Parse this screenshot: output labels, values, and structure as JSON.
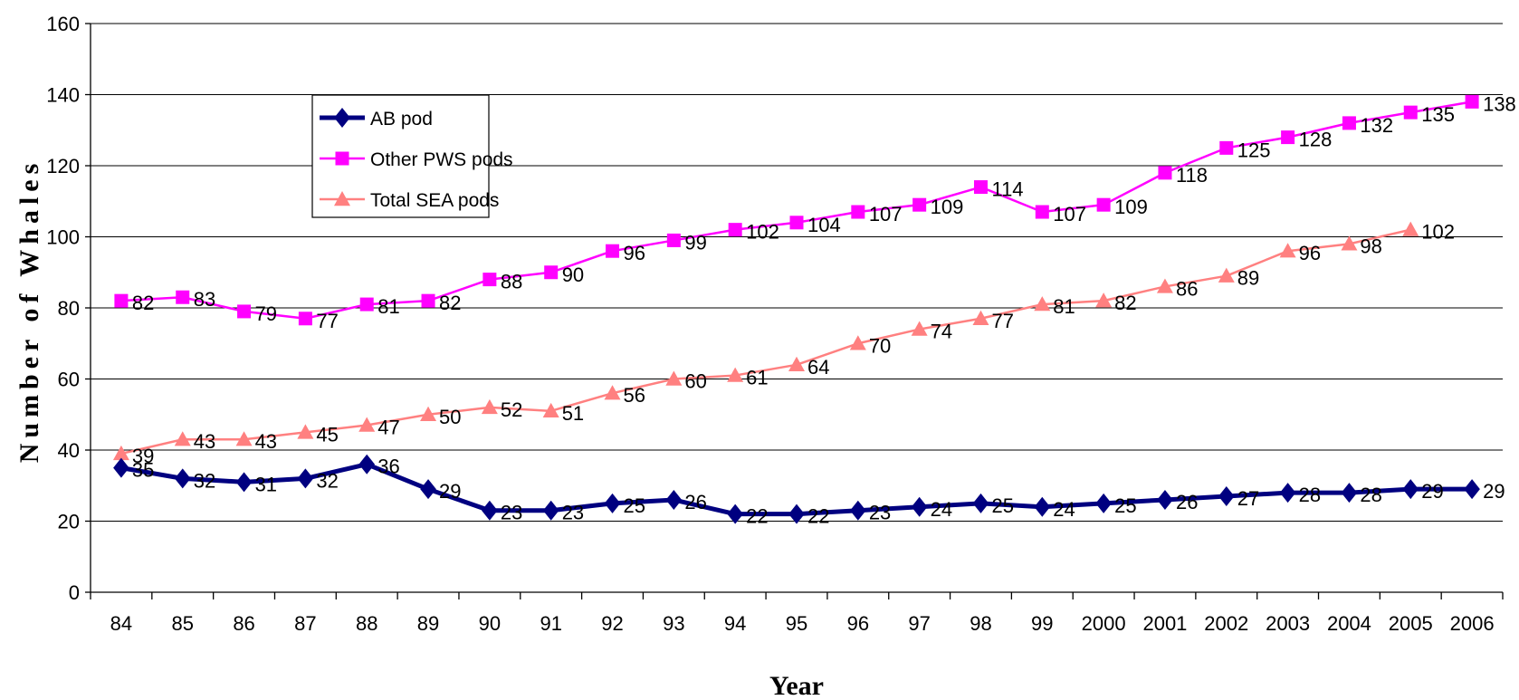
{
  "chart_data": {
    "type": "line",
    "title": "",
    "xlabel": "Year",
    "ylabel": "Number of Whales",
    "ylim": [
      0,
      160
    ],
    "yticks": [
      0,
      20,
      40,
      60,
      80,
      100,
      120,
      140,
      160
    ],
    "grid": "horizontal",
    "legend_position": "top-left",
    "categories": [
      "84",
      "85",
      "86",
      "87",
      "88",
      "89",
      "90",
      "91",
      "92",
      "93",
      "94",
      "95",
      "96",
      "97",
      "98",
      "99",
      "2000",
      "2001",
      "2002",
      "2003",
      "2004",
      "2005",
      "2006"
    ],
    "series": [
      {
        "name": "AB pod",
        "color": "#000080",
        "marker": "diamond",
        "values": [
          35,
          32,
          31,
          32,
          36,
          29,
          23,
          23,
          25,
          26,
          22,
          22,
          23,
          24,
          25,
          24,
          25,
          26,
          27,
          28,
          28,
          29,
          29
        ]
      },
      {
        "name": "Other PWS pods",
        "color": "#ff00ff",
        "marker": "square",
        "values": [
          82,
          83,
          79,
          77,
          81,
          82,
          88,
          90,
          96,
          99,
          102,
          104,
          107,
          109,
          114,
          107,
          109,
          118,
          125,
          128,
          132,
          135,
          138
        ]
      },
      {
        "name": "Total SEA pods",
        "color": "#ff8080",
        "marker": "triangle",
        "values": [
          39,
          43,
          43,
          45,
          47,
          50,
          52,
          51,
          56,
          60,
          61,
          64,
          70,
          74,
          77,
          81,
          82,
          86,
          89,
          96,
          98,
          102,
          null
        ]
      }
    ]
  }
}
